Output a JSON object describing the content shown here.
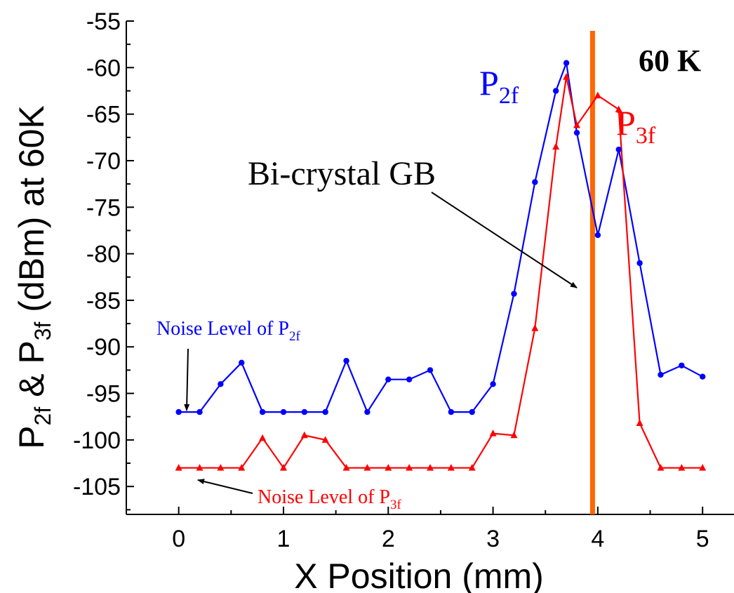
{
  "chart_data": {
    "type": "line",
    "xlabel": "X Position (mm)",
    "ylabel": {
      "prefix": "P",
      "sub1": "2f",
      "middle": " & P",
      "sub2": "3f",
      "suffix": " (dBm) at 60K"
    },
    "xlim": [
      -0.5,
      5.3
    ],
    "ylim": [
      -108,
      -55
    ],
    "xticks": [
      0,
      1,
      2,
      3,
      4,
      5
    ],
    "yticks": [
      -55,
      -60,
      -65,
      -70,
      -75,
      -80,
      -85,
      -90,
      -95,
      -100,
      -105
    ],
    "x": [
      0,
      0.2,
      0.4,
      0.6,
      0.8,
      1.0,
      1.2,
      1.4,
      1.6,
      1.8,
      2.0,
      2.2,
      2.4,
      2.6,
      2.8,
      3.0,
      3.2,
      3.4,
      3.6,
      3.7,
      3.8,
      4.0,
      4.2,
      4.4,
      4.6,
      4.8,
      5.0
    ],
    "series": [
      {
        "name": "P2f",
        "color": "#0000ff",
        "marker": "circle",
        "values": [
          -97,
          -97,
          -94,
          -91.7,
          -97,
          -97,
          -97,
          -97,
          -91.5,
          -97,
          -93.5,
          -93.5,
          -92.5,
          -97,
          -97,
          -94,
          -84.3,
          -72.3,
          -62.5,
          -59.5,
          -67,
          -78,
          -68.8,
          -81,
          -93,
          -92,
          -93.2
        ]
      },
      {
        "name": "P3f",
        "color": "#ff0000",
        "marker": "triangle",
        "values": [
          -103,
          -103,
          -103,
          -103,
          -99.8,
          -103,
          -99.5,
          -100,
          -103,
          -103,
          -103,
          -103,
          -103,
          -103,
          -103,
          -99.3,
          -99.5,
          -88,
          -68.5,
          -61,
          -66.2,
          -63,
          -64.5,
          -98.2,
          -103,
          -103,
          -103
        ]
      }
    ],
    "grain_boundary": {
      "x": 3.95,
      "color": "#ff6600"
    },
    "labels": {
      "temperature": "60 K",
      "p2f_main": "P",
      "p2f_sub": "2f",
      "p3f_main": "P",
      "p3f_sub": "3f",
      "gb": "Bi-crystal GB",
      "noise2_main": "Noise Level of P",
      "noise2_sub": "2f",
      "noise3_main": "Noise Level of P",
      "noise3_sub": "3f"
    }
  }
}
